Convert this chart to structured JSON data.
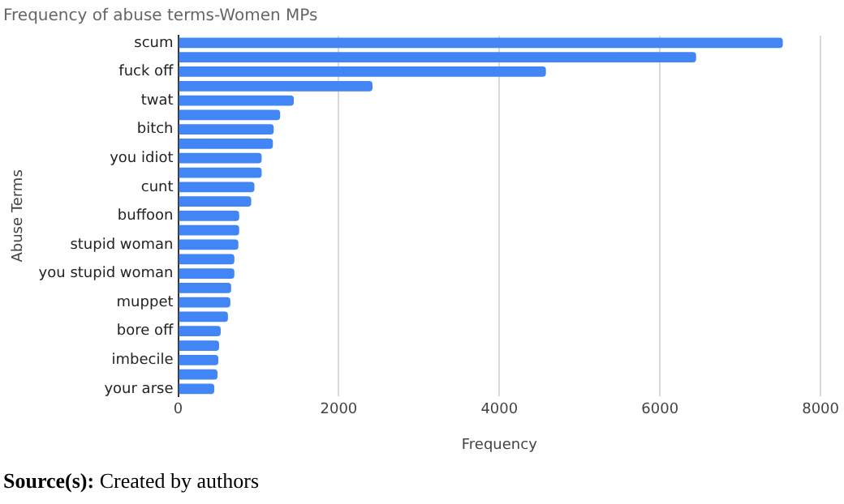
{
  "chart_data": {
    "type": "bar",
    "orientation": "horizontal",
    "title": "Frequency of abuse terms-Women MPs",
    "xlabel": "Frequency",
    "ylabel": "Abuse Terms",
    "categories": [
      "scum",
      null,
      "fuck off",
      null,
      "twat",
      null,
      "bitch",
      null,
      "you idiot",
      null,
      "cunt",
      null,
      "buffoon",
      null,
      "stupid woman",
      null,
      "you stupid woman",
      null,
      "muppet",
      null,
      "bore off",
      null,
      "imbecile",
      null,
      "your arse"
    ],
    "values": [
      7530,
      6450,
      4580,
      2420,
      1440,
      1270,
      1190,
      1180,
      1040,
      1040,
      950,
      910,
      760,
      760,
      750,
      700,
      700,
      660,
      650,
      620,
      530,
      510,
      500,
      490,
      450
    ],
    "color": "#4285f4",
    "xlim": [
      0,
      8000
    ],
    "xticks": [
      0,
      2000,
      4000,
      6000,
      8000
    ],
    "grid": "x",
    "legend": false,
    "annotations": [
      "Source(s): Created by authors"
    ]
  }
}
